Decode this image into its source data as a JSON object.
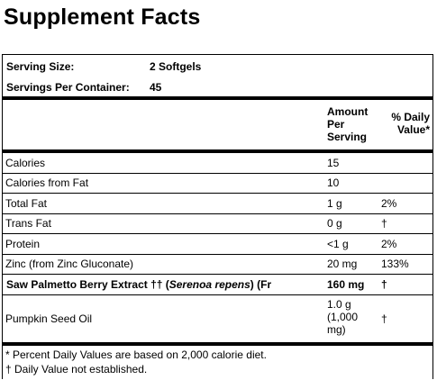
{
  "header": {
    "title": "Supplement Facts"
  },
  "serving": [
    {
      "label": "Serving Size:",
      "value": "2 Softgels"
    },
    {
      "label": "Servings Per Container:",
      "value": "45"
    }
  ],
  "table": {
    "columns": {
      "amount": "Amount Per Serving",
      "dv": "% Daily Value*"
    },
    "rows": [
      {
        "name": "Calories",
        "amount": "15"
      },
      {
        "name": "Calories from Fat",
        "amount": "10"
      },
      {
        "name": "Total Fat",
        "amount": "1 g",
        "dv": "2%"
      },
      {
        "name": "Trans Fat",
        "amount": "0 g",
        "dv": "†"
      },
      {
        "name": "Protein",
        "amount": "<1 g",
        "dv": "2%"
      },
      {
        "name": "Zinc (from Zinc Gluconate)",
        "amount": "20 mg",
        "dv": "133%"
      },
      {
        "name_parts": [
          "Saw Palmetto Berry Extract ††  (",
          "Serenoa repens",
          ") (Fr"
        ],
        "amount": "160 mg",
        "dv": "†"
      },
      {
        "name": "Pumpkin Seed Oil",
        "amount": "1.0 g (1,000 mg)",
        "dv": "†"
      }
    ]
  },
  "footnotes": [
    "* Percent Daily Values are based on 2,000 calorie diet.",
    "† Daily Value not established."
  ]
}
